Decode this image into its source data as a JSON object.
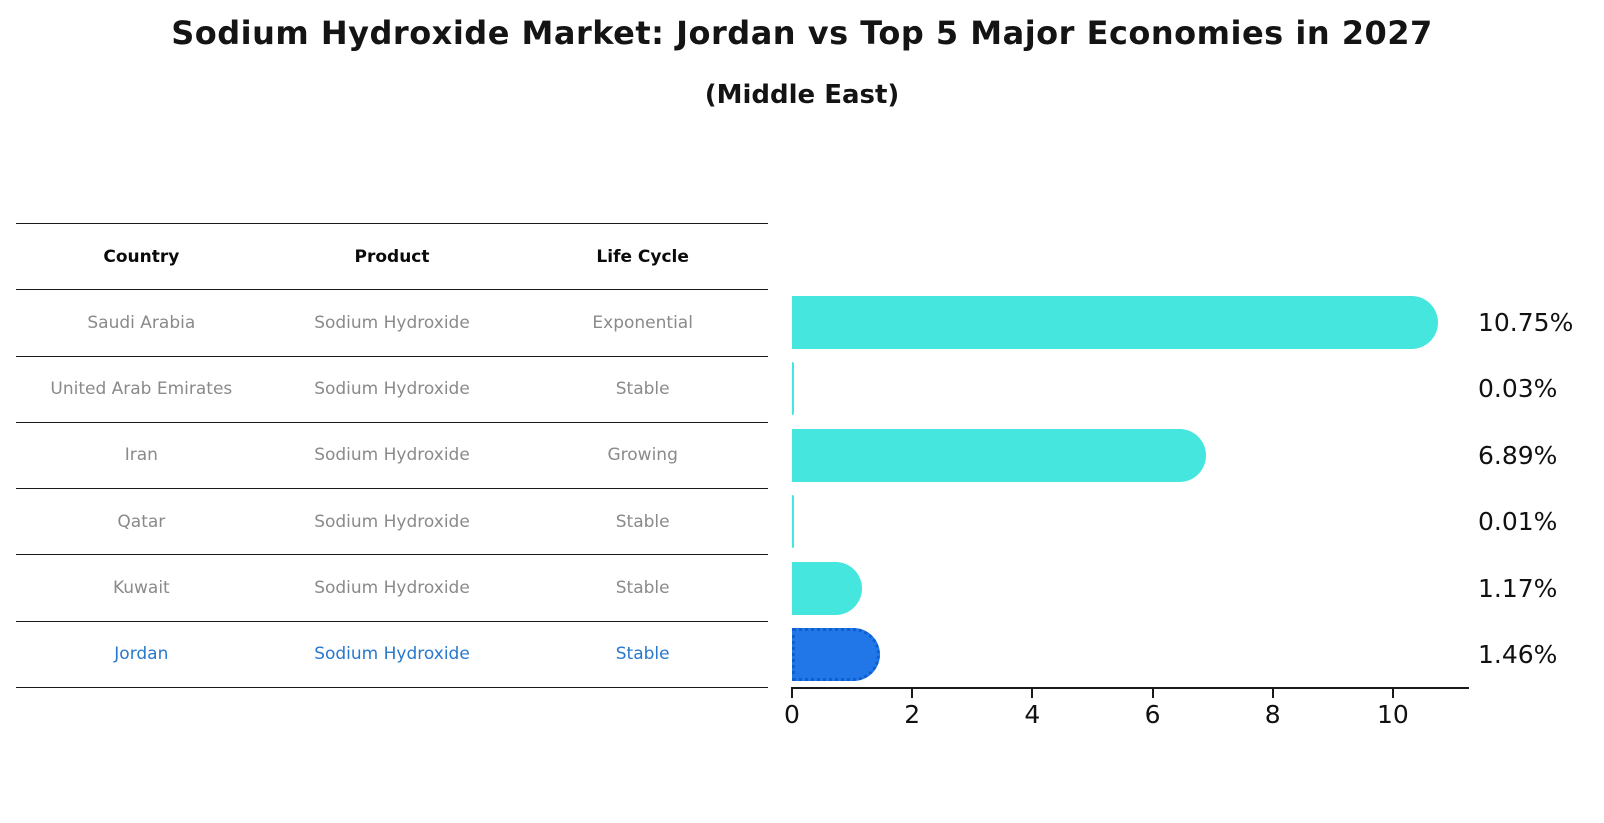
{
  "title": "Sodium Hydroxide Market: Jordan vs Top 5 Major Economies in 2027",
  "subtitle": "(Middle East)",
  "table": {
    "headers": [
      "Country",
      "Product",
      "Life Cycle"
    ],
    "rows": [
      {
        "country": "Saudi Arabia",
        "product": "Sodium Hydroxide",
        "life_cycle": "Exponential"
      },
      {
        "country": "United Arab Emirates",
        "product": "Sodium Hydroxide",
        "life_cycle": "Stable"
      },
      {
        "country": "Iran",
        "product": "Sodium Hydroxide",
        "life_cycle": "Growing"
      },
      {
        "country": "Qatar",
        "product": "Sodium Hydroxide",
        "life_cycle": "Stable"
      },
      {
        "country": "Kuwait",
        "product": "Sodium Hydroxide",
        "life_cycle": "Stable"
      },
      {
        "country": "Jordan",
        "product": "Sodium Hydroxide",
        "life_cycle": "Stable"
      }
    ]
  },
  "chart_data": {
    "type": "bar",
    "orientation": "horizontal",
    "title": "Sodium Hydroxide Market: Jordan vs Top 5 Major Economies in 2027 (Middle East)",
    "xlabel": "",
    "ylabel": "",
    "categories": [
      "Saudi Arabia",
      "United Arab Emirates",
      "Iran",
      "Qatar",
      "Kuwait",
      "Jordan"
    ],
    "values": [
      10.75,
      0.03,
      6.89,
      0.01,
      1.17,
      1.46
    ],
    "value_labels": [
      "10.75%",
      "0.03%",
      "6.89%",
      "0.01%",
      "1.17%",
      "1.46%"
    ],
    "x_ticks": [
      0,
      2,
      4,
      6,
      8,
      10
    ],
    "x_tick_labels": [
      "0",
      "2",
      "4",
      "6",
      "8",
      "10"
    ],
    "xlim": [
      0,
      11.25
    ],
    "grid": false,
    "legend": "none",
    "highlight_index": 5
  },
  "colors": {
    "bar_color": "#45E6DE",
    "highlight_color": "#2176E8",
    "highlight_border": "#0d5fd0",
    "highlight_text": "#2878CD",
    "table_text": "#8a8a8a"
  }
}
